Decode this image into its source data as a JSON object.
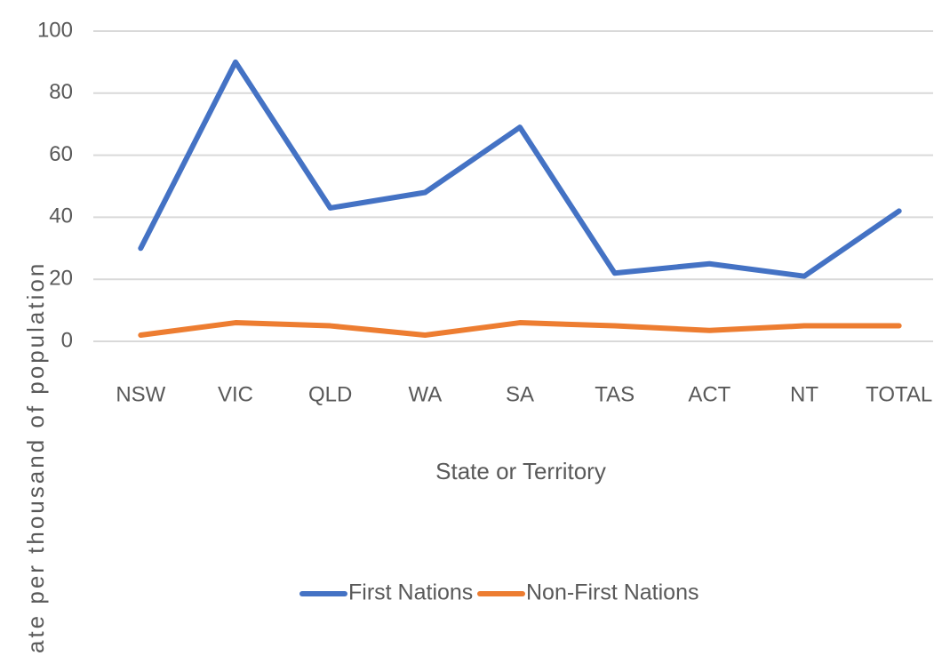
{
  "chart_data": {
    "type": "line",
    "x_label": "State or Territory",
    "y_label": "ate per thousand of population",
    "categories": [
      "NSW",
      "VIC",
      "QLD",
      "WA",
      "SA",
      "TAS",
      "ACT",
      "NT",
      "TOTAL"
    ],
    "series": [
      {
        "name": "First Nations",
        "color": "#4472c4",
        "values": [
          30,
          90,
          43,
          48,
          69,
          22,
          25,
          21,
          42
        ]
      },
      {
        "name": "Non-First Nations",
        "color": "#ed7d31",
        "values": [
          2,
          6,
          5,
          2,
          6,
          5,
          3.5,
          5,
          5
        ]
      }
    ],
    "ylim": [
      0,
      100
    ],
    "yticks": [
      0,
      20,
      40,
      60,
      80,
      100
    ],
    "grid": true,
    "legend": "bottom"
  }
}
